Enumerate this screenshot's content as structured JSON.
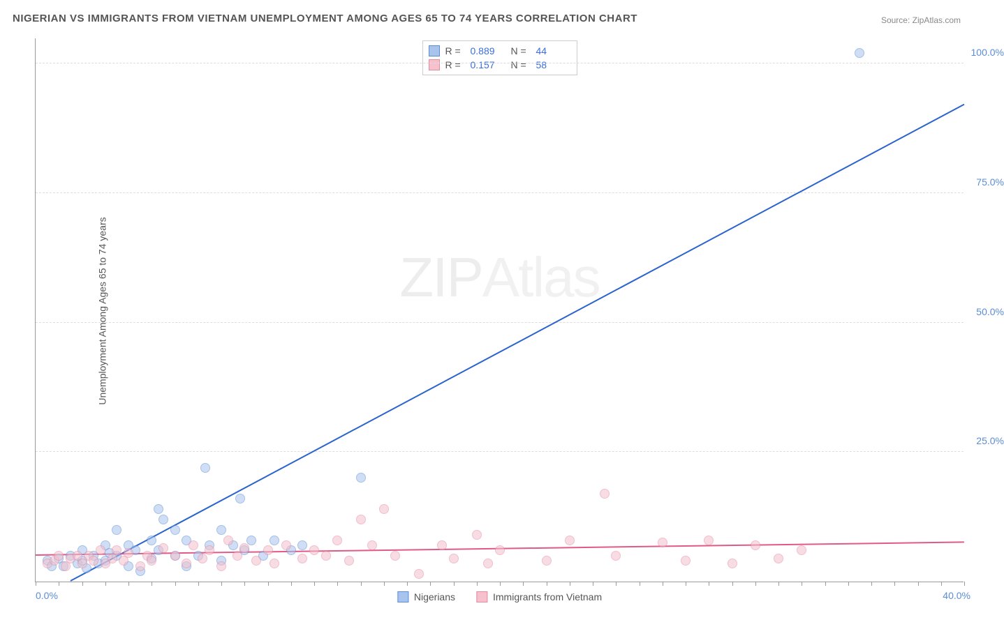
{
  "title": "NIGERIAN VS IMMIGRANTS FROM VIETNAM UNEMPLOYMENT AMONG AGES 65 TO 74 YEARS CORRELATION CHART",
  "source": "Source: ZipAtlas.com",
  "ylabel": "Unemployment Among Ages 65 to 74 years",
  "watermark_bold": "ZIP",
  "watermark_thin": "Atlas",
  "chart": {
    "type": "scatter",
    "xlim": [
      0,
      40
    ],
    "ylim": [
      0,
      105
    ],
    "x_origin_label": "0.0%",
    "x_max_label": "40.0%",
    "ytick_values": [
      25,
      50,
      75,
      100
    ],
    "ytick_labels": [
      "25.0%",
      "50.0%",
      "75.0%",
      "100.0%"
    ],
    "xtick_step": 1,
    "grid_color": "#dddddd",
    "axis_color": "#999999",
    "background_color": "#ffffff",
    "tick_label_color": "#5b8dd6",
    "tick_label_fontsize": 14,
    "marker_radius": 7,
    "marker_opacity": 0.55,
    "series": [
      {
        "name": "Nigerians",
        "color_fill": "#a8c4ec",
        "color_stroke": "#5b8dd6",
        "R": "0.889",
        "N": "44",
        "trend": {
          "x1": 1.5,
          "y1": 0,
          "x2": 40,
          "y2": 92,
          "color": "#2a63d0",
          "width": 2
        },
        "points": [
          [
            0.5,
            4
          ],
          [
            0.7,
            3
          ],
          [
            1,
            4.5
          ],
          [
            1.2,
            3
          ],
          [
            1.5,
            5
          ],
          [
            1.8,
            3.5
          ],
          [
            2,
            4
          ],
          [
            2,
            6
          ],
          [
            2.2,
            2.5
          ],
          [
            2.5,
            5
          ],
          [
            2.7,
            3.5
          ],
          [
            3,
            7
          ],
          [
            3,
            4
          ],
          [
            3.2,
            5.5
          ],
          [
            3.5,
            5
          ],
          [
            3.5,
            10
          ],
          [
            4,
            3
          ],
          [
            4,
            7
          ],
          [
            4.3,
            6
          ],
          [
            4.5,
            2
          ],
          [
            5,
            8
          ],
          [
            5,
            4.5
          ],
          [
            5.3,
            14
          ],
          [
            5.3,
            6
          ],
          [
            5.5,
            12
          ],
          [
            6,
            10
          ],
          [
            6,
            5
          ],
          [
            6.5,
            8
          ],
          [
            6.5,
            3
          ],
          [
            7,
            5
          ],
          [
            7.3,
            22
          ],
          [
            7.5,
            7
          ],
          [
            8,
            10
          ],
          [
            8,
            4
          ],
          [
            8.5,
            7
          ],
          [
            8.8,
            16
          ],
          [
            9,
            6
          ],
          [
            9.3,
            8
          ],
          [
            9.8,
            5
          ],
          [
            10.3,
            8
          ],
          [
            11,
            6
          ],
          [
            11.5,
            7
          ],
          [
            14,
            20
          ],
          [
            35.5,
            102
          ]
        ]
      },
      {
        "name": "Immigrants from Vietnam",
        "color_fill": "#f4c1cd",
        "color_stroke": "#e68aa3",
        "R": "0.157",
        "N": "58",
        "trend": {
          "x1": 0,
          "y1": 5,
          "x2": 40,
          "y2": 7.5,
          "color": "#e05a87",
          "width": 2
        },
        "points": [
          [
            0.5,
            3.5
          ],
          [
            0.8,
            4
          ],
          [
            1,
            5
          ],
          [
            1.3,
            3
          ],
          [
            1.5,
            4.5
          ],
          [
            1.8,
            5
          ],
          [
            2,
            3.5
          ],
          [
            2.3,
            5
          ],
          [
            2.5,
            4
          ],
          [
            2.8,
            6
          ],
          [
            3,
            3.5
          ],
          [
            3.3,
            4.5
          ],
          [
            3.5,
            6
          ],
          [
            3.8,
            4
          ],
          [
            4,
            5.5
          ],
          [
            4.5,
            3
          ],
          [
            4.8,
            5
          ],
          [
            5,
            4
          ],
          [
            5.5,
            6.5
          ],
          [
            6,
            5
          ],
          [
            6.5,
            3.5
          ],
          [
            6.8,
            7
          ],
          [
            7.2,
            4.5
          ],
          [
            7.5,
            6
          ],
          [
            8,
            3
          ],
          [
            8.3,
            8
          ],
          [
            8.7,
            5
          ],
          [
            9,
            6.5
          ],
          [
            9.5,
            4
          ],
          [
            10,
            6
          ],
          [
            10.3,
            3.5
          ],
          [
            10.8,
            7
          ],
          [
            11.5,
            4.5
          ],
          [
            12,
            6
          ],
          [
            12.5,
            5
          ],
          [
            13,
            8
          ],
          [
            13.5,
            4
          ],
          [
            14,
            12
          ],
          [
            14.5,
            7
          ],
          [
            15,
            14
          ],
          [
            15.5,
            5
          ],
          [
            16.5,
            1.5
          ],
          [
            17.5,
            7
          ],
          [
            18,
            4.5
          ],
          [
            19,
            9
          ],
          [
            19.5,
            3.5
          ],
          [
            20,
            6
          ],
          [
            22,
            4
          ],
          [
            23,
            8
          ],
          [
            24.5,
            17
          ],
          [
            25,
            5
          ],
          [
            27,
            7.5
          ],
          [
            28,
            4
          ],
          [
            29,
            8
          ],
          [
            30,
            3.5
          ],
          [
            31,
            7
          ],
          [
            32,
            4.5
          ],
          [
            33,
            6
          ]
        ]
      }
    ],
    "legend": [
      {
        "label": "Nigerians",
        "fill": "#a8c4ec",
        "stroke": "#5b8dd6"
      },
      {
        "label": "Immigrants from Vietnam",
        "fill": "#f4c1cd",
        "stroke": "#e68aa3"
      }
    ],
    "stats_box": {
      "border_color": "#cccccc",
      "rows": [
        {
          "fill": "#a8c4ec",
          "stroke": "#5b8dd6",
          "R": "0.889",
          "N": "44"
        },
        {
          "fill": "#f4c1cd",
          "stroke": "#e68aa3",
          "R": "0.157",
          "N": "58"
        }
      ]
    }
  }
}
